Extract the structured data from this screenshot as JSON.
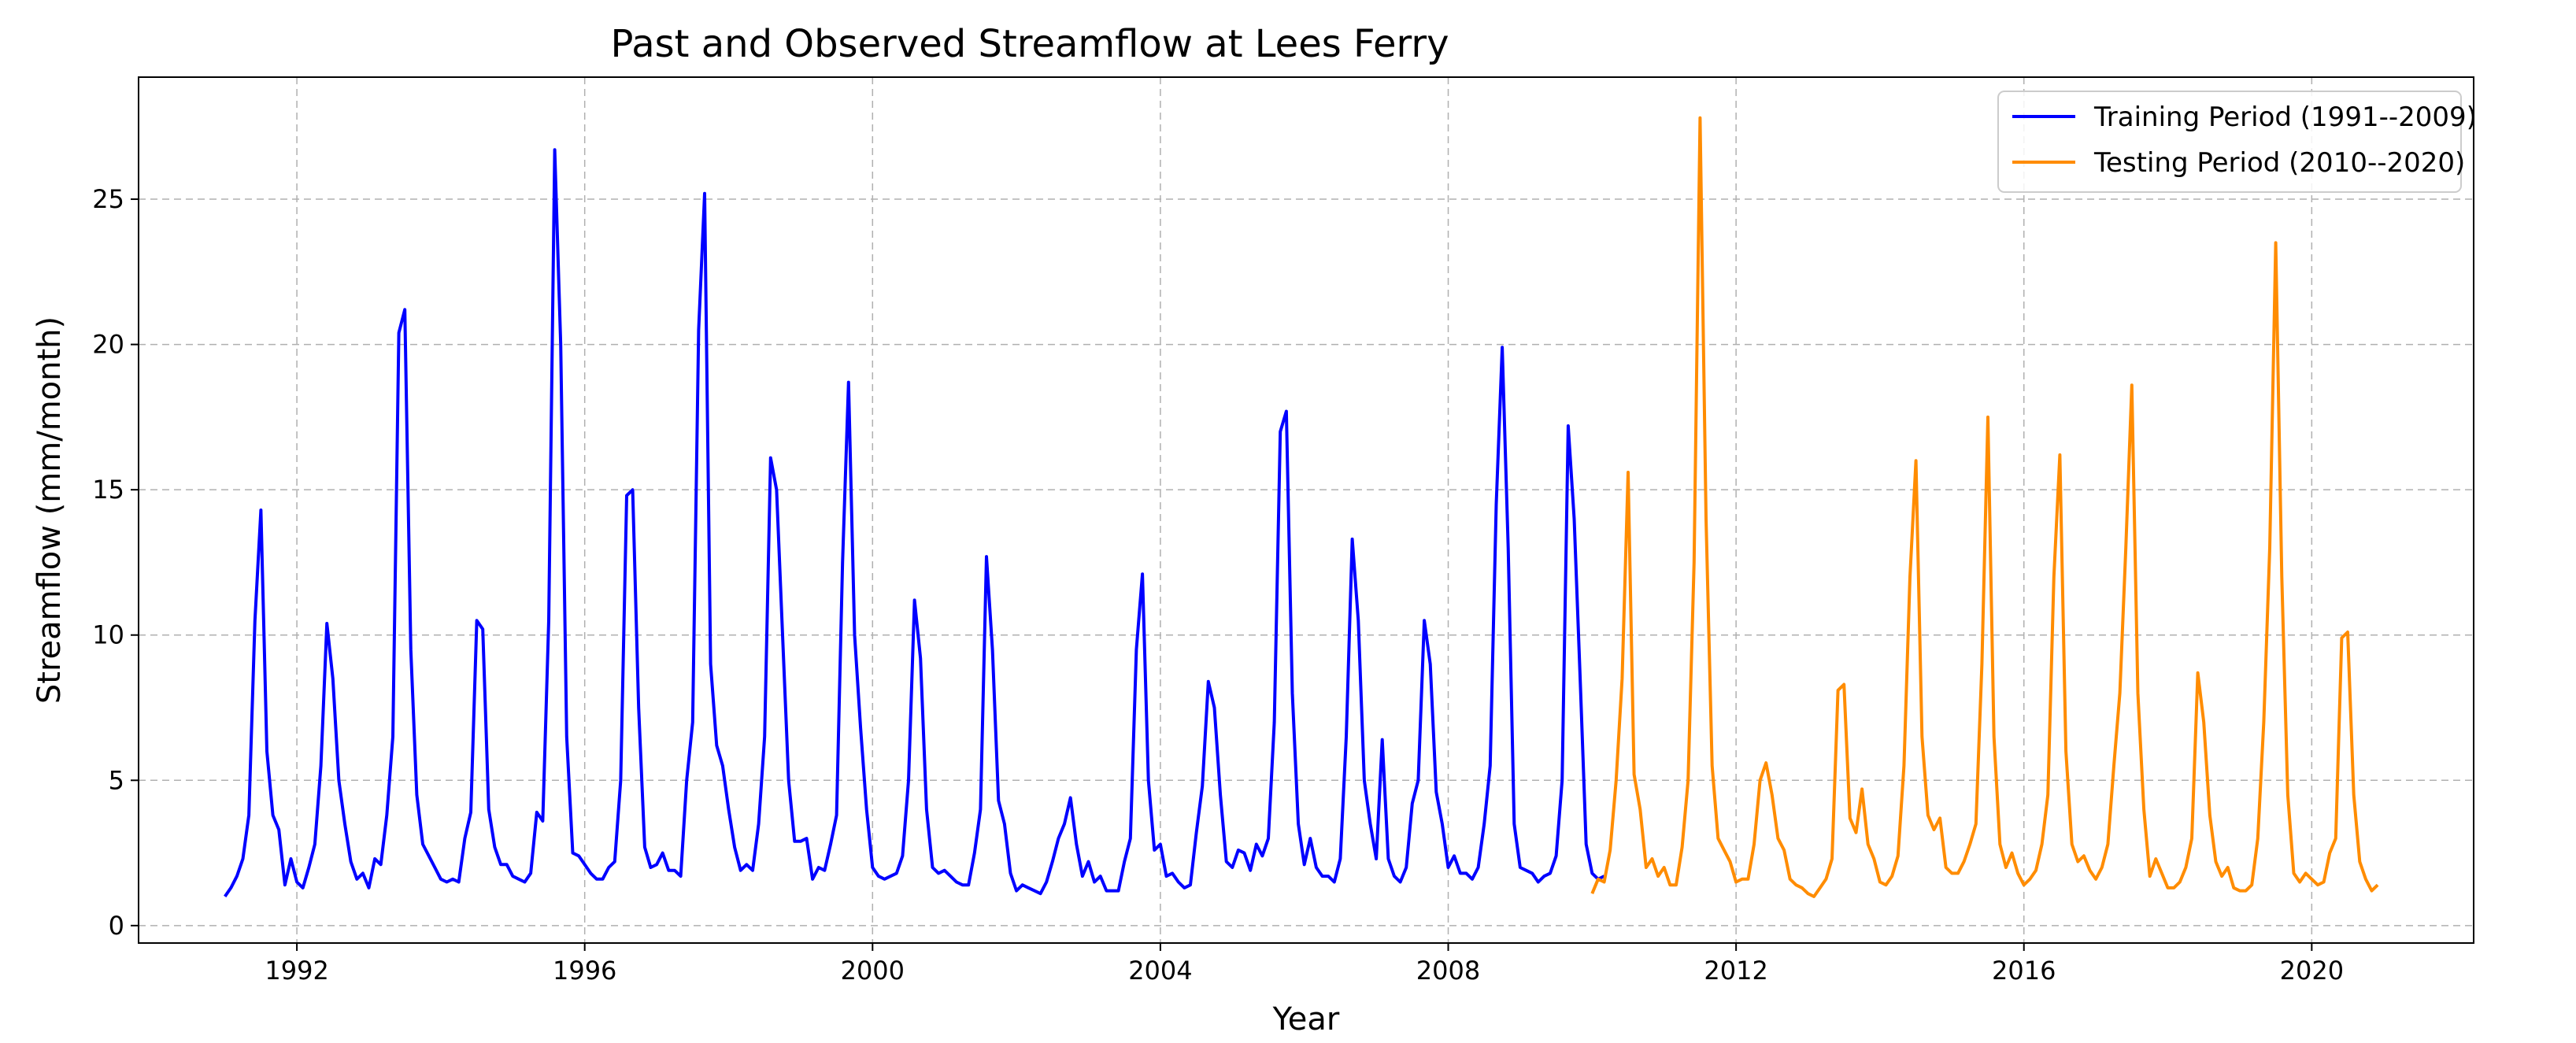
{
  "chart_data": {
    "type": "line",
    "title": "Past and Observed Streamflow at Lees Ferry",
    "xlabel": "Year",
    "ylabel": "Streamflow (mm/month)",
    "xlim": [
      1989.8,
      2022.25
    ],
    "ylim": [
      -0.6,
      29.2
    ],
    "xticks": [
      1992,
      1996,
      2000,
      2004,
      2008,
      2012,
      2016,
      2020
    ],
    "yticks": [
      0,
      5,
      10,
      15,
      20,
      25
    ],
    "grid": true,
    "legend_position": "top-right",
    "series": [
      {
        "name": "Training Period (1991--2009)",
        "color": "#0000ff",
        "start_year": 1991,
        "values": [
          1.0,
          1.3,
          1.7,
          2.3,
          3.8,
          10.5,
          14.3,
          6.0,
          3.8,
          3.3,
          1.4,
          2.3,
          1.5,
          1.3,
          2.0,
          2.8,
          5.5,
          10.4,
          8.5,
          5.0,
          3.5,
          2.2,
          1.6,
          1.8,
          1.3,
          2.3,
          2.1,
          3.8,
          6.5,
          20.4,
          21.2,
          9.5,
          4.5,
          2.8,
          2.4,
          2.0,
          1.6,
          1.5,
          1.6,
          1.5,
          3.0,
          3.9,
          10.5,
          10.2,
          4.0,
          2.7,
          2.1,
          2.1,
          1.7,
          1.6,
          1.5,
          1.8,
          3.9,
          3.6,
          10.5,
          26.7,
          20.0,
          6.5,
          2.5,
          2.4,
          2.1,
          1.8,
          1.6,
          1.6,
          2.0,
          2.2,
          5.0,
          14.8,
          15.0,
          7.5,
          2.7,
          2.0,
          2.1,
          2.5,
          1.9,
          1.9,
          1.7,
          5.0,
          7.0,
          20.5,
          25.2,
          9.0,
          6.2,
          5.5,
          4.0,
          2.7,
          1.9,
          2.1,
          1.9,
          3.5,
          6.5,
          16.1,
          15.0,
          10.0,
          5.0,
          2.9,
          2.9,
          3.0,
          1.6,
          2.0,
          1.9,
          2.8,
          3.8,
          12.5,
          18.7,
          10.0,
          6.8,
          4.0,
          2.0,
          1.7,
          1.6,
          1.7,
          1.8,
          2.4,
          5.0,
          11.2,
          9.2,
          4.0,
          2.0,
          1.8,
          1.9,
          1.7,
          1.5,
          1.4,
          1.4,
          2.5,
          4.0,
          12.7,
          9.5,
          4.3,
          3.5,
          1.8,
          1.2,
          1.4,
          1.3,
          1.2,
          1.1,
          1.5,
          2.2,
          3.0,
          3.5,
          4.4,
          2.8,
          1.7,
          2.2,
          1.5,
          1.7,
          1.2,
          1.2,
          1.2,
          2.2,
          3.0,
          9.5,
          12.1,
          5.0,
          2.6,
          2.8,
          1.7,
          1.8,
          1.5,
          1.3,
          1.4,
          3.2,
          4.8,
          8.4,
          7.5,
          4.5,
          2.2,
          2.0,
          2.6,
          2.5,
          1.9,
          2.8,
          2.4,
          3.0,
          7.0,
          17.0,
          17.7,
          8.0,
          3.5,
          2.1,
          3.0,
          2.0,
          1.7,
          1.7,
          1.5,
          2.3,
          6.5,
          13.3,
          10.5,
          5.0,
          3.5,
          2.3,
          6.4,
          2.3,
          1.7,
          1.5,
          2.0,
          4.2,
          5.0,
          10.5,
          9.0,
          4.6,
          3.5,
          2.0,
          2.4,
          1.8,
          1.8,
          1.6,
          2.0,
          3.5,
          5.5,
          14.5,
          19.9,
          13.0,
          3.5,
          2.0,
          1.9,
          1.8,
          1.5,
          1.7,
          1.8,
          2.4,
          5.0,
          17.2,
          14.0,
          8.5,
          2.8,
          1.8,
          1.6,
          1.7
        ]
      },
      {
        "name": "Testing Period (2010--2020)",
        "color": "#ff8c00",
        "start_year": 2010,
        "values": [
          1.1,
          1.6,
          1.5,
          2.6,
          5.0,
          8.5,
          15.6,
          5.2,
          4.0,
          2.0,
          2.3,
          1.7,
          2.0,
          1.4,
          1.4,
          2.7,
          5.0,
          12.5,
          27.8,
          14.0,
          5.5,
          3.0,
          2.6,
          2.2,
          1.5,
          1.6,
          1.6,
          2.8,
          5.0,
          5.6,
          4.5,
          3.0,
          2.6,
          1.6,
          1.4,
          1.3,
          1.1,
          1.0,
          1.3,
          1.6,
          2.3,
          8.1,
          8.3,
          3.7,
          3.2,
          4.7,
          2.8,
          2.3,
          1.5,
          1.4,
          1.7,
          2.4,
          5.5,
          12.0,
          16.0,
          6.5,
          3.8,
          3.3,
          3.7,
          2.0,
          1.8,
          1.8,
          2.2,
          2.8,
          3.5,
          9.0,
          17.5,
          6.5,
          2.8,
          2.0,
          2.5,
          1.8,
          1.4,
          1.6,
          1.9,
          2.8,
          4.5,
          12.0,
          16.2,
          6.0,
          2.8,
          2.2,
          2.4,
          1.9,
          1.6,
          2.0,
          2.8,
          5.5,
          8.0,
          13.0,
          18.6,
          8.0,
          4.0,
          1.7,
          2.3,
          1.8,
          1.3,
          1.3,
          1.5,
          2.0,
          3.0,
          8.7,
          7.0,
          3.8,
          2.2,
          1.7,
          2.0,
          1.3,
          1.2,
          1.2,
          1.4,
          3.0,
          7.0,
          13.0,
          23.5,
          12.0,
          4.5,
          1.8,
          1.5,
          1.8,
          1.6,
          1.4,
          1.5,
          2.5,
          3.0,
          9.9,
          10.1,
          4.5,
          2.2,
          1.6,
          1.2,
          1.4
        ]
      }
    ]
  }
}
